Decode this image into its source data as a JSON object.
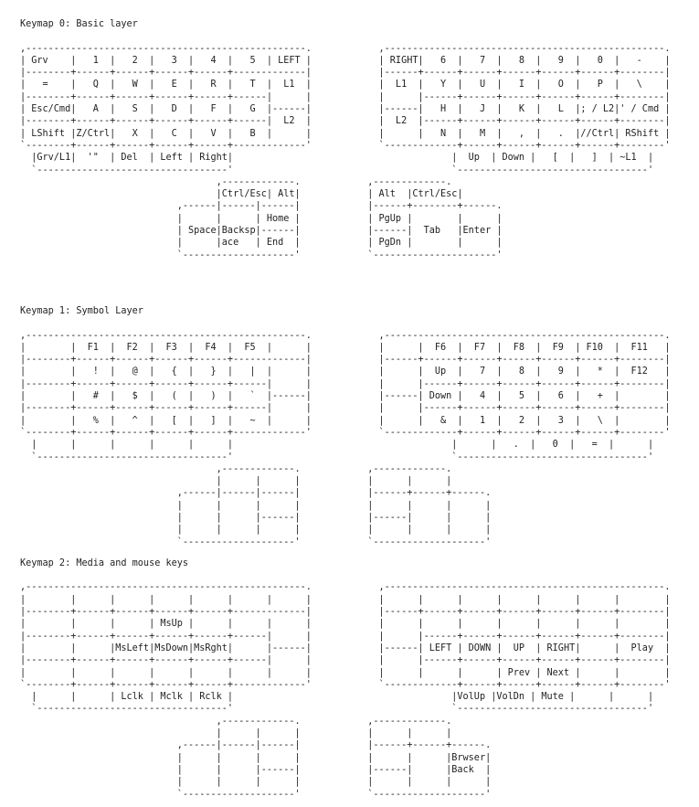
{
  "theme": {
    "background": "#ffffff",
    "text": "#1f1f1f"
  },
  "sections": [
    {
      "title": "Keymap 0: Basic layer",
      "art_lines": [
        ",--------------------------------------------------.            ,--------------------------------------------------.",
        "| Grv    |   1  |   2  |   3  |   4  |   5  | LEFT |            | RIGHT|   6  |   7  |   8  |   9  |   0  |   -    |",
        "|--------+------+------+------+------+-------------|            |------+------+------+------+------+------+--------|",
        "|   =    |   Q  |   W  |   E  |   R  |   T  |  L1  |            |  L1  |   Y  |   U  |   I  |   O  |   P  |   \\    |",
        "|--------+------+------+------+------+------|      |            |      |------+------+------+------+------+--------|",
        "| Esc/Cmd|   A  |   S  |   D  |   F  |   G  |------|            |------|   H  |   J  |   K  |   L  |; / L2|' / Cmd |",
        "|--------+------+------+------+------+------|  L2  |            |  L2  |------+------+------+------+------+--------|",
        "| LShift |Z/Ctrl|   X  |   C  |   V  |   B  |      |            |      |   N  |   M  |   ,  |   .  |//Ctrl| RShift |",
        "`--------+------+------+------+------+-------------'            `-------------+------+------+------+------+--------'",
        "  |Grv/L1|  '\"  | Del  | Left | Right|                                       |  Up  | Down |   [  |   ]  | ~L1  |",
        "  `----------------------------------'                                       `----------------------------------'",
        "                                   ,-------------.            ,-------------.",
        "                                   |Ctrl/Esc| Alt|            | Alt  |Ctrl/Esc|",
        "                            ,------|------|------|            |------+--------+------.",
        "                            |      |      | Home |            | PgUp |        |      |",
        "                            | Space|Backsp|------|            |------|  Tab   |Enter |",
        "                            |      |ace   | End  |            | PgDn |        |      |",
        "                            `--------------------'            `----------------------'"
      ]
    },
    {
      "title": "Keymap 1: Symbol Layer",
      "art_lines": [
        ",--------------------------------------------------.            ,--------------------------------------------------.",
        "|        |  F1  |  F2  |  F3  |  F4  |  F5  |      |            |      |  F6  |  F7  |  F8  |  F9  | F10  |  F11   |",
        "|--------+------+------+------+------+-------------|            |------+------+------+------+------+------+--------|",
        "|        |   !  |   @  |   {  |   }  |   |  |      |            |      |  Up  |   7  |   8  |   9  |   *  |  F12   |",
        "|--------+------+------+------+------+------|      |            |      |------+------+------+------+------+--------|",
        "|        |   #  |   $  |   (  |   )  |   `  |------|            |------| Down |   4  |   5  |   6  |   +  |        |",
        "|--------+------+------+------+------+------|      |            |      |------+------+------+------+------+--------|",
        "|        |   %  |   ^  |   [  |   ]  |   ~  |      |            |      |   &  |   1  |   2  |   3  |   \\  |        |",
        "`--------+------+------+------+------+-------------'            `-------------+------+------+------+------+--------'",
        "  |      |      |      |      |      |                                       |      |   .  |   0  |   =  |      |",
        "  `----------------------------------'                                       `----------------------------------'",
        "                                   ,-------------.            ,-------------.",
        "                                   |      |      |            |      |      |",
        "                            ,------|------|------|            |------+------+------.",
        "                            |      |      |      |            |      |      |      |",
        "                            |      |      |------|            |------|      |      |",
        "                            |      |      |      |            |      |      |      |",
        "                            `--------------------'            `--------------------'"
      ]
    },
    {
      "title": "Keymap 2: Media and mouse keys",
      "art_lines": [
        ",--------------------------------------------------.            ,--------------------------------------------------.",
        "|        |      |      |      |      |      |      |            |      |      |      |      |      |      |        |",
        "|--------+------+------+------+------+-------------|            |------+------+------+------+------+------+--------|",
        "|        |      |      | MsUp |      |      |      |            |      |      |      |      |      |      |        |",
        "|--------+------+------+------+------+------|      |            |      |------+------+------+------+------+--------|",
        "|        |      |MsLeft|MsDown|MsRght|      |------|            |------| LEFT | DOWN |  UP  | RIGHT|      |  Play  |",
        "|--------+------+------+------+------+------|      |            |      |------+------+------+------+------+--------|",
        "|        |      |      |      |      |      |      |            |      |      |      | Prev | Next |      |        |",
        "`--------+------+------+------+------+-------------'            `-------------+------+------+------+------+--------'",
        "  |      |      | Lclk | Mclk | Rclk |                                       |VolUp |VolDn | Mute |      |      |",
        "  `----------------------------------'                                       `----------------------------------'",
        "                                   ,-------------.            ,-------------.",
        "                                   |      |      |            |      |      |",
        "                            ,------|------|------|            |------+------+------.",
        "                            |      |      |      |            |      |      |Brwser|",
        "                            |      |      |------|            |------|      |Back  |",
        "                            |      |      |      |            |      |      |      |",
        "                            `--------------------'            `--------------------'"
      ]
    }
  ]
}
